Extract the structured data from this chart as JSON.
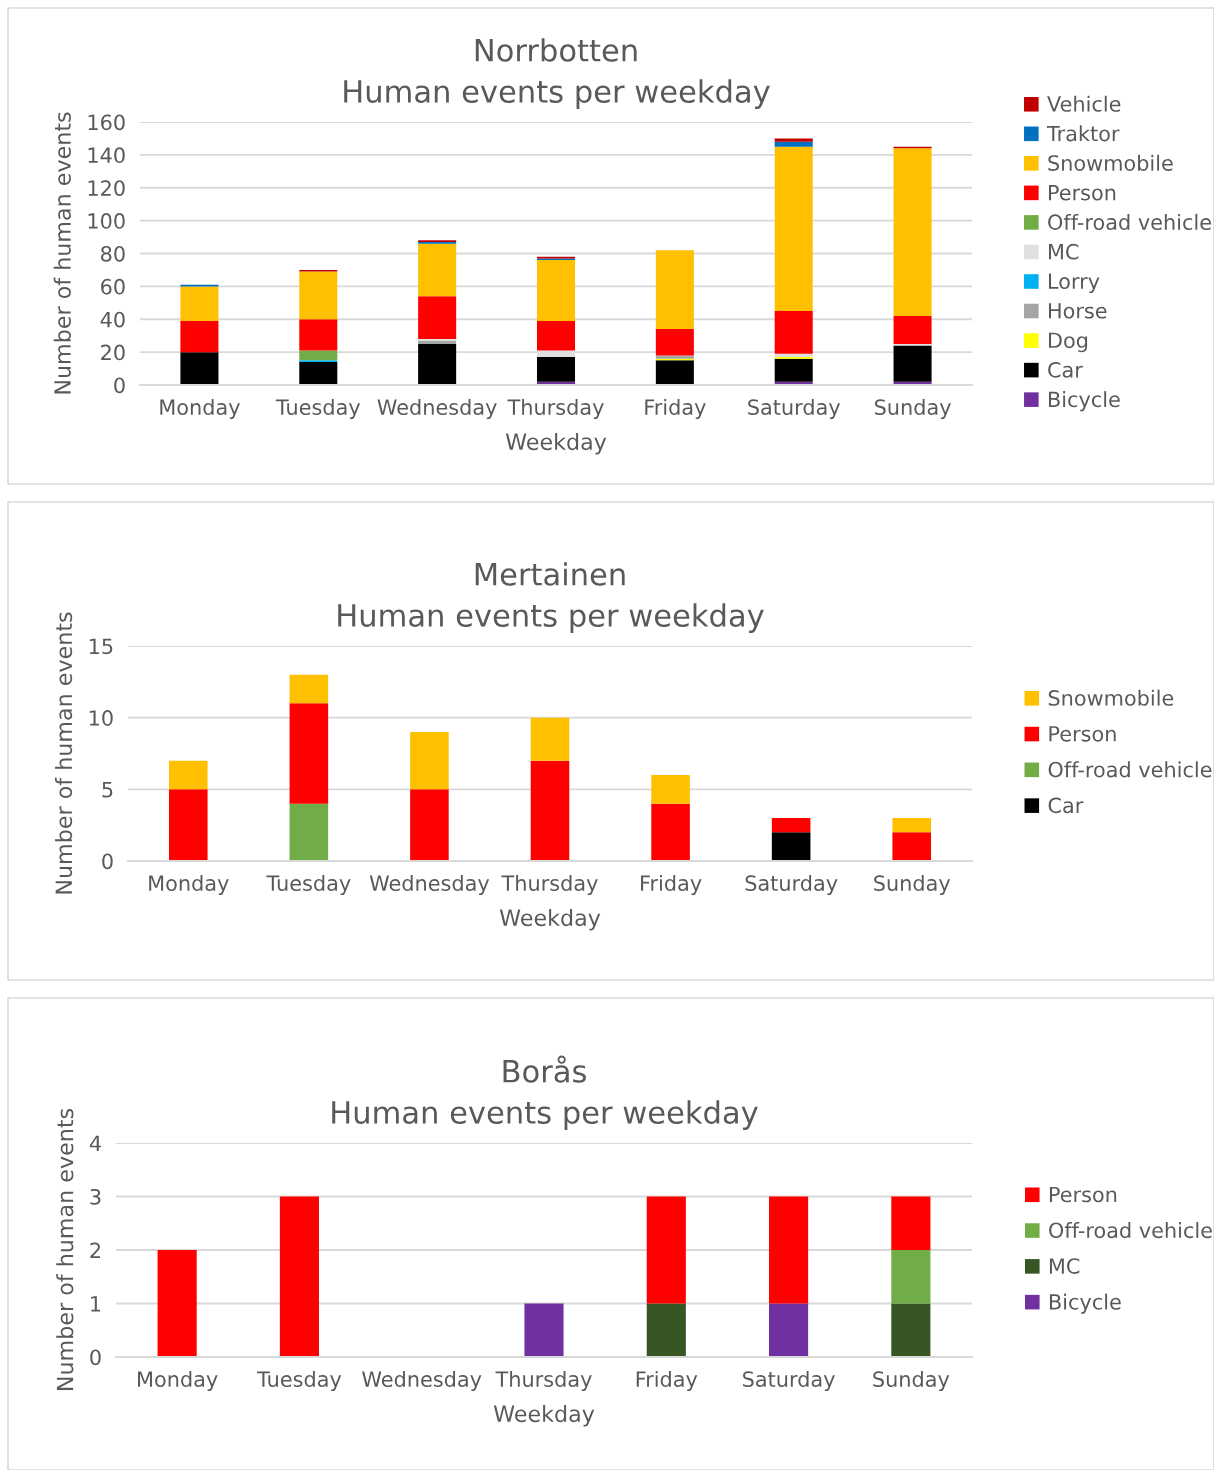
{
  "chart_data": [
    {
      "type": "bar",
      "title": "Norrbotten\nHuman events per weekday",
      "xlabel": "Weekday",
      "ylabel": "Number of human events",
      "stacked": true,
      "legend": "right",
      "grid": "y",
      "categories": [
        "Monday",
        "Tuesday",
        "Wednesday",
        "Thursday",
        "Friday",
        "Saturday",
        "Sunday"
      ],
      "ylim": [
        0,
        160
      ],
      "yticks": [
        0,
        20,
        40,
        60,
        80,
        100,
        120,
        140,
        160
      ],
      "series": [
        {
          "name": "Bicycle",
          "color": "#7030a0",
          "values": [
            null,
            null,
            null,
            2,
            null,
            2,
            2
          ]
        },
        {
          "name": "Car",
          "color": "#000000",
          "values": [
            20,
            14,
            25,
            15,
            15,
            14,
            22
          ]
        },
        {
          "name": "Dog",
          "color": "#ffff00",
          "values": [
            null,
            null,
            null,
            null,
            1,
            1,
            null
          ]
        },
        {
          "name": "Horse",
          "color": "#a5a5a5",
          "values": [
            null,
            null,
            2,
            null,
            2,
            null,
            null
          ]
        },
        {
          "name": "Lorry",
          "color": "#00b0f0",
          "values": [
            null,
            1,
            null,
            null,
            null,
            null,
            null
          ]
        },
        {
          "name": "MC",
          "color": "#e0e0e0",
          "values": [
            null,
            null,
            1,
            4,
            null,
            2,
            1
          ]
        },
        {
          "name": "Off-road vehicle",
          "color": "#70ad47",
          "values": [
            null,
            6,
            null,
            null,
            null,
            null,
            null
          ]
        },
        {
          "name": "Person",
          "color": "#ff0000",
          "values": [
            19,
            19,
            26,
            18,
            16,
            26,
            17
          ]
        },
        {
          "name": "Snowmobile",
          "color": "#ffc000",
          "values": [
            21,
            29,
            32,
            37,
            48,
            100,
            102
          ]
        },
        {
          "name": "Traktor",
          "color": "#0070c0",
          "values": [
            1,
            null,
            1,
            1,
            null,
            3,
            null
          ]
        },
        {
          "name": "Vehicle",
          "color": "#c00000",
          "values": [
            null,
            1,
            1,
            1,
            null,
            2,
            1
          ]
        }
      ]
    },
    {
      "type": "bar",
      "title": "Mertainen\nHuman events per weekday",
      "xlabel": "Weekday",
      "ylabel": "Number of human events",
      "stacked": true,
      "legend": "right",
      "grid": "y",
      "categories": [
        "Monday",
        "Tuesday",
        "Wednesday",
        "Thursday",
        "Friday",
        "Saturday",
        "Sunday"
      ],
      "ylim": [
        0,
        15
      ],
      "yticks": [
        0,
        5,
        10,
        15
      ],
      "series": [
        {
          "name": "Car",
          "color": "#000000",
          "values": [
            null,
            null,
            null,
            null,
            null,
            2,
            null
          ]
        },
        {
          "name": "Off-road vehicle",
          "color": "#70ad47",
          "values": [
            null,
            4,
            null,
            null,
            null,
            null,
            null
          ]
        },
        {
          "name": "Person",
          "color": "#ff0000",
          "values": [
            5,
            7,
            5,
            7,
            4,
            1,
            2
          ]
        },
        {
          "name": "Snowmobile",
          "color": "#ffc000",
          "values": [
            2,
            2,
            4,
            3,
            2,
            null,
            1
          ]
        }
      ]
    },
    {
      "type": "bar",
      "title": "Borås\nHuman events per weekday",
      "xlabel": "Weekday",
      "ylabel": "Number of human events",
      "stacked": true,
      "legend": "right",
      "grid": "y",
      "categories": [
        "Monday",
        "Tuesday",
        "Wednesday",
        "Thursday",
        "Friday",
        "Saturday",
        "Sunday"
      ],
      "ylim": [
        0,
        4
      ],
      "yticks": [
        0,
        1,
        2,
        3,
        4
      ],
      "series": [
        {
          "name": "Bicycle",
          "color": "#7030a0",
          "values": [
            null,
            null,
            null,
            1,
            null,
            1,
            null
          ]
        },
        {
          "name": "MC",
          "color": "#375623",
          "values": [
            null,
            null,
            null,
            null,
            1,
            null,
            1
          ]
        },
        {
          "name": "Off-road vehicle",
          "color": "#70ad47",
          "values": [
            null,
            null,
            null,
            null,
            null,
            null,
            1
          ]
        },
        {
          "name": "Person",
          "color": "#ff0000",
          "values": [
            2,
            3,
            null,
            null,
            2,
            2,
            1
          ]
        }
      ]
    }
  ]
}
